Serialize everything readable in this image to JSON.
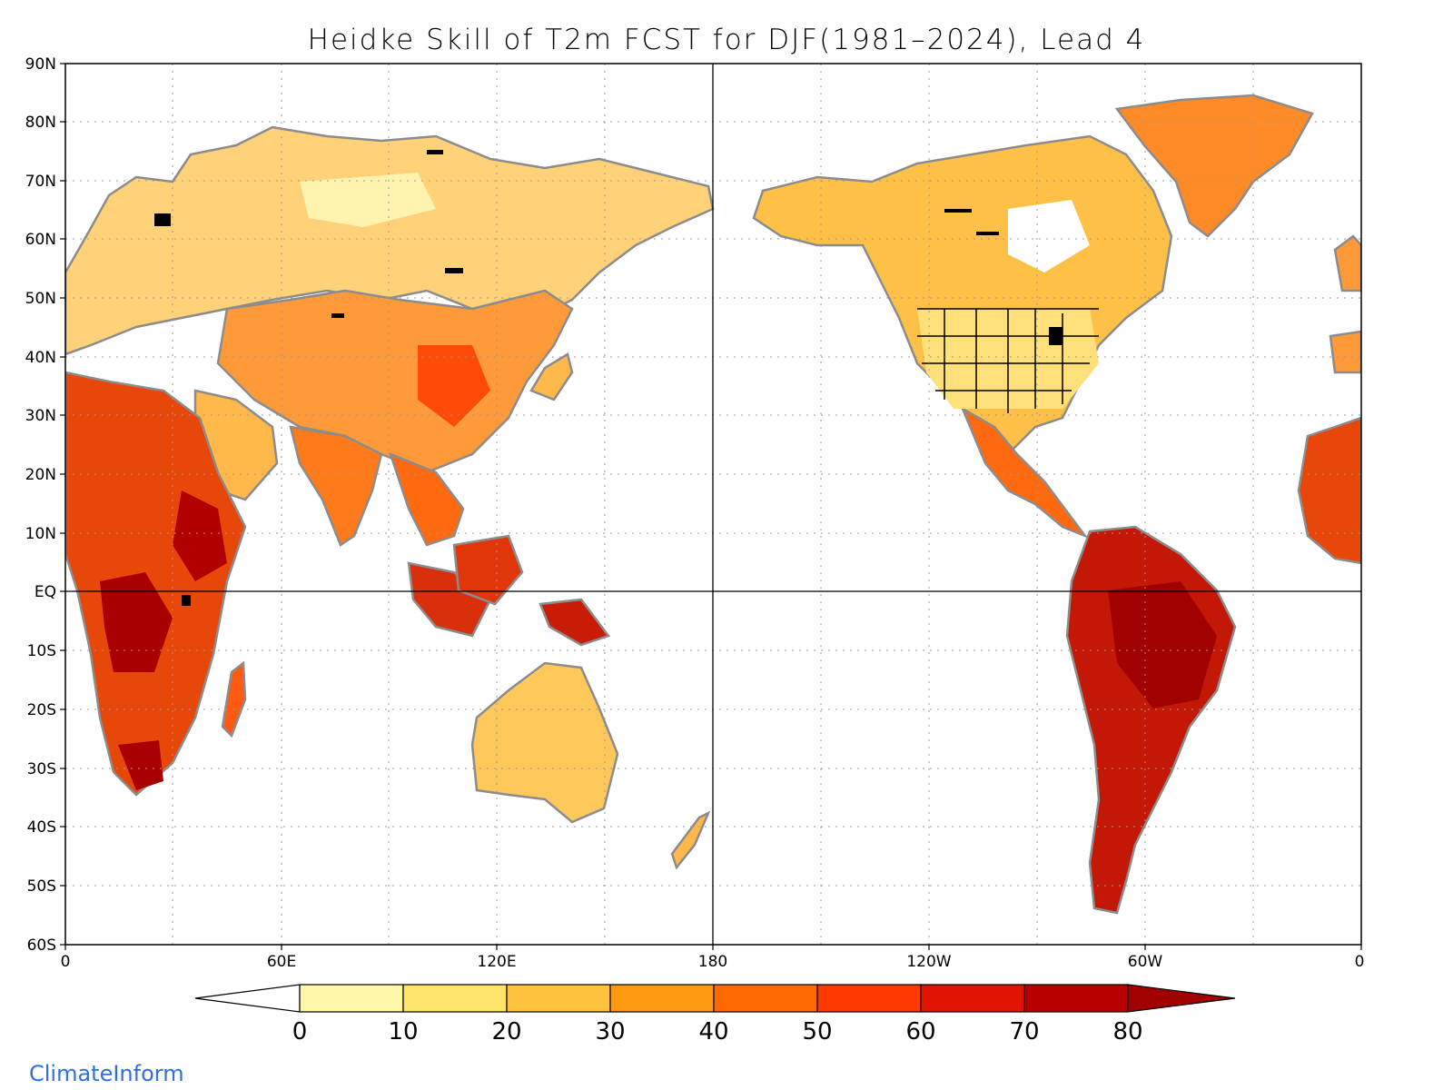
{
  "title": "Heidke Skill of T2m FCST for DJF(1981–2024), Lead 4",
  "brand": "ClimateInform",
  "map": {
    "projection": "plate-carree, 0 to 360 longitude, 60S to 90N",
    "lat_ticks": [
      "90N",
      "80N",
      "70N",
      "60N",
      "50N",
      "40N",
      "30N",
      "20N",
      "10N",
      "EQ",
      "10S",
      "20S",
      "30S",
      "40S",
      "50S",
      "60S"
    ],
    "lon_ticks": [
      "0",
      "60E",
      "120E",
      "180",
      "120W",
      "60W",
      "0"
    ],
    "coastline_color": "#8c8c8c",
    "lake_color": "#000000",
    "grid": "dotted gridlines every 10 degrees latitude and 30 degrees longitude; solid lines at equator and 180",
    "regions": [
      {
        "name": "Europe-Russia",
        "level": 25
      },
      {
        "name": "Central Asia",
        "level": 30
      },
      {
        "name": "Africa",
        "level": 55
      },
      {
        "name": "South Asia",
        "level": 40
      },
      {
        "name": "Maritime Continent",
        "level": 60
      },
      {
        "name": "Australia",
        "level": 25
      },
      {
        "name": "North America",
        "level": 25
      },
      {
        "name": "Greenland",
        "level": 40
      },
      {
        "name": "South America",
        "level": 60
      }
    ]
  },
  "colorbar": {
    "labels": [
      "0",
      "10",
      "20",
      "30",
      "40",
      "50",
      "60",
      "70",
      "80"
    ],
    "colors": [
      "#fff7a8",
      "#ffe46b",
      "#ffc23d",
      "#ff9a12",
      "#ff6a00",
      "#ff3a00",
      "#e01400",
      "#b80000"
    ],
    "below_color": "#ffffff",
    "above_color": "#a00000"
  }
}
